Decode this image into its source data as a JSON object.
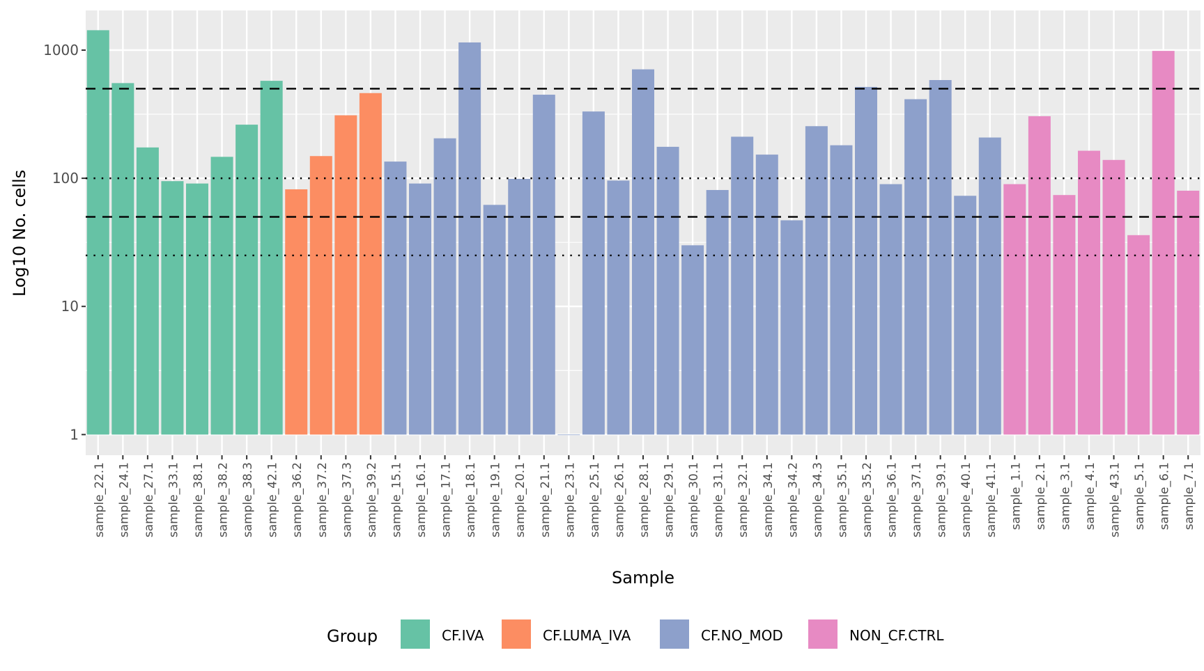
{
  "chart_data": {
    "type": "bar",
    "title": "",
    "xlabel": "Sample",
    "ylabel": "Log10 No. cells",
    "y_scale": "log10",
    "ylim": [
      0.69,
      2040
    ],
    "y_ticks": [
      1,
      10,
      100,
      1000
    ],
    "y_tick_labels": [
      "1",
      "10",
      "100",
      "1000"
    ],
    "grid": true,
    "legend": {
      "title": "Group",
      "placement": "bottom"
    },
    "groups": [
      {
        "name": "CF.IVA",
        "color": "#66C2A5"
      },
      {
        "name": "CF.LUMA_IVA",
        "color": "#FC8D62"
      },
      {
        "name": "CF.NO_MOD",
        "color": "#8DA0CB"
      },
      {
        "name": "NON_CF.CTRL",
        "color": "#E78AC3"
      }
    ],
    "reference_lines": [
      {
        "y": 500,
        "style": "dashed"
      },
      {
        "y": 100,
        "style": "dotted"
      },
      {
        "y": 50,
        "style": "dashed"
      },
      {
        "y": 25,
        "style": "dotted"
      }
    ],
    "categories": [
      "sample_22.1",
      "sample_24.1",
      "sample_27.1",
      "sample_33.1",
      "sample_38.1",
      "sample_38.2",
      "sample_38.3",
      "sample_42.1",
      "sample_36.2",
      "sample_37.2",
      "sample_37.3",
      "sample_39.2",
      "sample_15.1",
      "sample_16.1",
      "sample_17.1",
      "sample_18.1",
      "sample_19.1",
      "sample_20.1",
      "sample_21.1",
      "sample_23.1",
      "sample_25.1",
      "sample_26.1",
      "sample_28.1",
      "sample_29.1",
      "sample_30.1",
      "sample_31.1",
      "sample_32.1",
      "sample_34.1",
      "sample_34.2",
      "sample_34.3",
      "sample_35.1",
      "sample_35.2",
      "sample_36.1",
      "sample_37.1",
      "sample_39.1",
      "sample_40.1",
      "sample_41.1",
      "sample_1.1",
      "sample_2.1",
      "sample_3.1",
      "sample_4.1",
      "sample_43.1",
      "sample_5.1",
      "sample_6.1",
      "sample_7.1"
    ],
    "group_of": [
      "CF.IVA",
      "CF.IVA",
      "CF.IVA",
      "CF.IVA",
      "CF.IVA",
      "CF.IVA",
      "CF.IVA",
      "CF.IVA",
      "CF.LUMA_IVA",
      "CF.LUMA_IVA",
      "CF.LUMA_IVA",
      "CF.LUMA_IVA",
      "CF.NO_MOD",
      "CF.NO_MOD",
      "CF.NO_MOD",
      "CF.NO_MOD",
      "CF.NO_MOD",
      "CF.NO_MOD",
      "CF.NO_MOD",
      "CF.NO_MOD",
      "CF.NO_MOD",
      "CF.NO_MOD",
      "CF.NO_MOD",
      "CF.NO_MOD",
      "CF.NO_MOD",
      "CF.NO_MOD",
      "CF.NO_MOD",
      "CF.NO_MOD",
      "CF.NO_MOD",
      "CF.NO_MOD",
      "CF.NO_MOD",
      "CF.NO_MOD",
      "CF.NO_MOD",
      "CF.NO_MOD",
      "CF.NO_MOD",
      "CF.NO_MOD",
      "CF.NO_MOD",
      "NON_CF.CTRL",
      "NON_CF.CTRL",
      "NON_CF.CTRL",
      "NON_CF.CTRL",
      "NON_CF.CTRL",
      "NON_CF.CTRL",
      "NON_CF.CTRL",
      "NON_CF.CTRL"
    ],
    "values": [
      1430,
      553,
      174,
      95,
      91,
      147,
      262,
      576,
      82,
      149,
      310,
      462,
      135,
      91,
      205,
      1148,
      62,
      99,
      449,
      1,
      332,
      96,
      708,
      176,
      30,
      81,
      211,
      153,
      47,
      255,
      181,
      516,
      90,
      414,
      584,
      73,
      208,
      90,
      305,
      74,
      164,
      139,
      36,
      986,
      80
    ]
  }
}
